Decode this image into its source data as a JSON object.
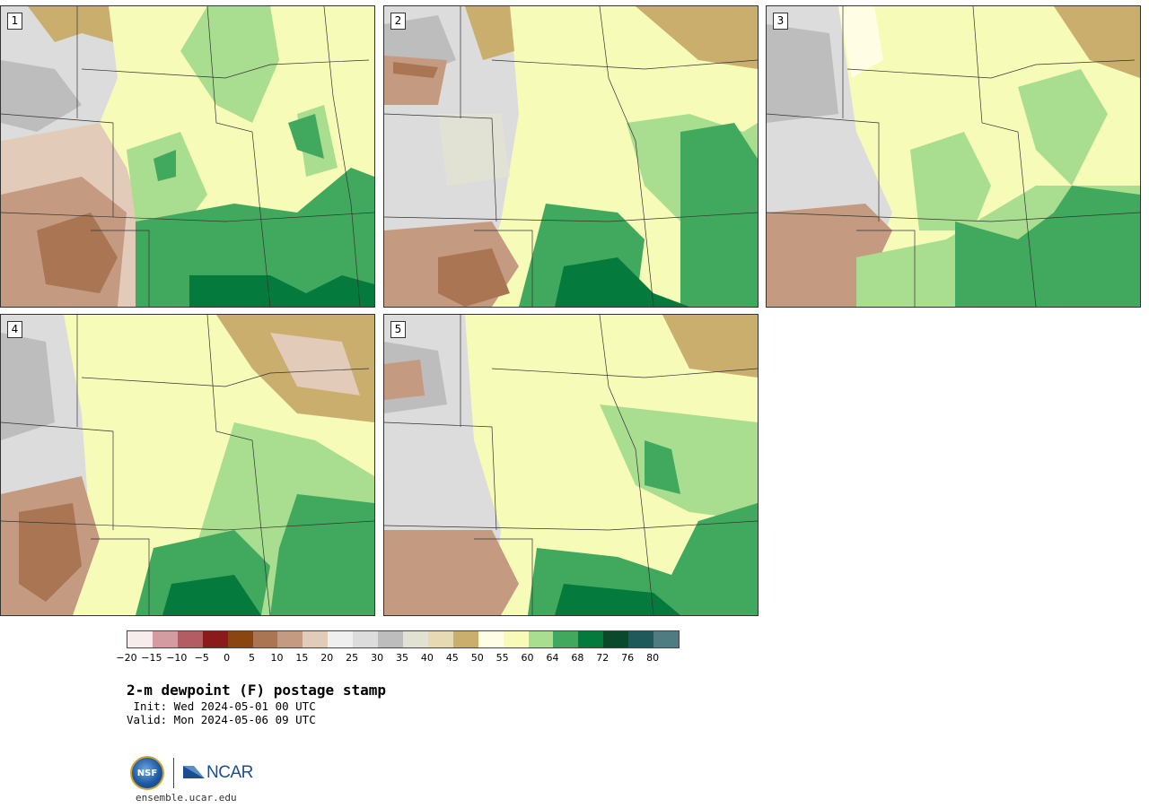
{
  "panels": [
    {
      "label": "1"
    },
    {
      "label": "2"
    },
    {
      "label": "3"
    },
    {
      "label": "4"
    },
    {
      "label": "5"
    }
  ],
  "colorbar": {
    "colors": [
      "#f7ecec",
      "#d49ba0",
      "#b35c63",
      "#8b1a1a",
      "#8a4511",
      "#a97552",
      "#c49a80",
      "#e2cbb9",
      "#efefef",
      "#dcdcdc",
      "#bdbdbd",
      "#e2e2d4",
      "#e6d9b3",
      "#c9ae6e",
      "#fffde3",
      "#f8fbb8",
      "#a9dd8f",
      "#41a95d",
      "#047a3c",
      "#0a4a2a",
      "#1f5959",
      "#4f7c80"
    ],
    "tick_labels": [
      "−20",
      "−15",
      "−10",
      "−5",
      "0",
      "5",
      "10",
      "15",
      "20",
      "25",
      "30",
      "35",
      "40",
      "45",
      "50",
      "55",
      "60",
      "64",
      "68",
      "72",
      "76",
      "80"
    ]
  },
  "title": "2-m dewpoint (F) postage stamp",
  "init": " Init: Wed 2024-05-01 00 UTC",
  "valid": "Valid: Mon 2024-05-06 09 UTC",
  "logo": {
    "nsf": "NSF",
    "ncar": "NCAR"
  },
  "site": "ensemble.ucar.edu"
}
